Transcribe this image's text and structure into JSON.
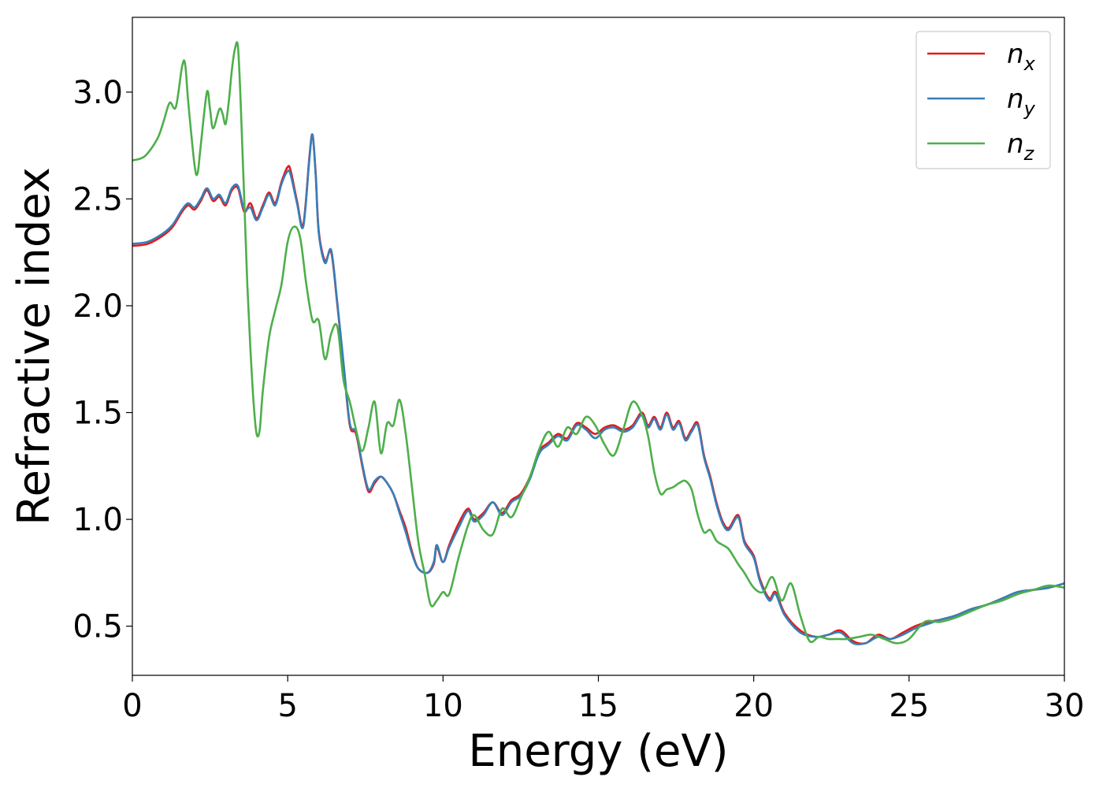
{
  "chart_data": {
    "type": "line",
    "xlabel": "Energy (eV)",
    "ylabel": "Refractive index",
    "xlim": [
      0,
      30
    ],
    "ylim": [
      0.27,
      3.35
    ],
    "xticks": [
      0,
      5,
      10,
      15,
      20,
      25,
      30
    ],
    "xtick_labels": [
      "0",
      "5",
      "10",
      "15",
      "20",
      "25",
      "30"
    ],
    "yticks": [
      0.5,
      1.0,
      1.5,
      2.0,
      2.5,
      3.0
    ],
    "ytick_labels": [
      "0.5",
      "1.0",
      "1.5",
      "2.0",
      "2.5",
      "3.0"
    ],
    "grid": false,
    "legend_position": "top-right",
    "series": [
      {
        "name": "n",
        "subscript": "x",
        "color": "#e41a1c",
        "x": [
          0,
          0.5,
          1.0,
          1.3,
          1.6,
          1.8,
          2.0,
          2.2,
          2.4,
          2.6,
          2.8,
          3.0,
          3.2,
          3.4,
          3.6,
          3.8,
          4.0,
          4.2,
          4.4,
          4.6,
          4.8,
          5.0,
          5.1,
          5.3,
          5.5,
          5.7,
          5.8,
          5.9,
          6.0,
          6.2,
          6.4,
          6.6,
          6.8,
          7.0,
          7.2,
          7.4,
          7.6,
          7.8,
          8.0,
          8.2,
          8.4,
          8.6,
          8.8,
          9.0,
          9.2,
          9.5,
          9.7,
          9.8,
          10.0,
          10.2,
          10.5,
          10.8,
          11.0,
          11.3,
          11.6,
          11.9,
          12.2,
          12.5,
          12.8,
          13.1,
          13.4,
          13.7,
          14.0,
          14.3,
          14.6,
          14.9,
          15.2,
          15.5,
          15.8,
          16.1,
          16.4,
          16.6,
          16.8,
          17.0,
          17.2,
          17.4,
          17.6,
          17.8,
          18.0,
          18.2,
          18.4,
          18.6,
          18.8,
          19.0,
          19.2,
          19.5,
          19.7,
          20.0,
          20.2,
          20.5,
          20.7,
          21.0,
          21.5,
          22.0,
          22.4,
          22.8,
          23.2,
          23.6,
          24.0,
          24.4,
          24.8,
          25.2,
          25.6,
          26.0,
          26.5,
          27.0,
          27.5,
          28.0,
          28.5,
          29.0,
          29.5,
          30.0
        ],
        "values": [
          2.28,
          2.29,
          2.33,
          2.37,
          2.44,
          2.47,
          2.45,
          2.49,
          2.54,
          2.49,
          2.51,
          2.47,
          2.54,
          2.55,
          2.44,
          2.48,
          2.41,
          2.47,
          2.53,
          2.48,
          2.58,
          2.65,
          2.63,
          2.49,
          2.38,
          2.7,
          2.8,
          2.62,
          2.35,
          2.21,
          2.25,
          2.0,
          1.72,
          1.44,
          1.4,
          1.25,
          1.13,
          1.17,
          1.2,
          1.17,
          1.12,
          1.04,
          0.96,
          0.85,
          0.77,
          0.75,
          0.79,
          0.87,
          0.8,
          0.88,
          0.98,
          1.05,
          1.0,
          1.03,
          1.08,
          1.03,
          1.09,
          1.12,
          1.2,
          1.32,
          1.36,
          1.4,
          1.38,
          1.45,
          1.43,
          1.4,
          1.43,
          1.44,
          1.42,
          1.44,
          1.5,
          1.44,
          1.48,
          1.43,
          1.5,
          1.43,
          1.46,
          1.38,
          1.42,
          1.45,
          1.3,
          1.2,
          1.08,
          0.99,
          0.96,
          1.02,
          0.9,
          0.83,
          0.72,
          0.63,
          0.66,
          0.56,
          0.48,
          0.45,
          0.46,
          0.48,
          0.43,
          0.42,
          0.46,
          0.44,
          0.47,
          0.5,
          0.52,
          0.53,
          0.55,
          0.58,
          0.6,
          0.63,
          0.66,
          0.67,
          0.68,
          0.7
        ]
      },
      {
        "name": "n",
        "subscript": "y",
        "color": "#377eb8",
        "x": [
          0,
          0.5,
          1.0,
          1.3,
          1.6,
          1.8,
          2.0,
          2.2,
          2.4,
          2.6,
          2.8,
          3.0,
          3.2,
          3.4,
          3.6,
          3.8,
          4.0,
          4.2,
          4.4,
          4.6,
          4.8,
          5.0,
          5.1,
          5.3,
          5.5,
          5.7,
          5.8,
          5.9,
          6.0,
          6.2,
          6.4,
          6.6,
          6.8,
          7.0,
          7.2,
          7.4,
          7.6,
          7.8,
          8.0,
          8.2,
          8.4,
          8.6,
          8.8,
          9.0,
          9.2,
          9.5,
          9.7,
          9.8,
          10.0,
          10.2,
          10.5,
          10.8,
          11.0,
          11.3,
          11.6,
          11.9,
          12.2,
          12.5,
          12.8,
          13.1,
          13.4,
          13.7,
          14.0,
          14.3,
          14.6,
          14.9,
          15.2,
          15.5,
          15.8,
          16.1,
          16.4,
          16.6,
          16.8,
          17.0,
          17.2,
          17.4,
          17.6,
          17.8,
          18.0,
          18.2,
          18.4,
          18.6,
          18.8,
          19.0,
          19.2,
          19.5,
          19.7,
          20.0,
          20.2,
          20.5,
          20.7,
          21.0,
          21.5,
          22.0,
          22.4,
          22.8,
          23.2,
          23.6,
          24.0,
          24.4,
          24.8,
          25.2,
          25.6,
          26.0,
          26.5,
          27.0,
          27.5,
          28.0,
          28.5,
          29.0,
          29.5,
          30.0
        ],
        "values": [
          2.29,
          2.3,
          2.34,
          2.38,
          2.45,
          2.48,
          2.46,
          2.5,
          2.55,
          2.5,
          2.52,
          2.48,
          2.55,
          2.56,
          2.45,
          2.46,
          2.4,
          2.46,
          2.52,
          2.47,
          2.57,
          2.63,
          2.61,
          2.48,
          2.37,
          2.69,
          2.8,
          2.61,
          2.34,
          2.2,
          2.26,
          2.01,
          1.73,
          1.45,
          1.41,
          1.26,
          1.14,
          1.18,
          1.2,
          1.17,
          1.12,
          1.03,
          0.94,
          0.84,
          0.77,
          0.75,
          0.8,
          0.88,
          0.8,
          0.87,
          0.96,
          1.04,
          0.99,
          1.02,
          1.08,
          1.02,
          1.08,
          1.11,
          1.19,
          1.31,
          1.35,
          1.39,
          1.37,
          1.44,
          1.42,
          1.38,
          1.42,
          1.43,
          1.41,
          1.43,
          1.49,
          1.43,
          1.47,
          1.42,
          1.49,
          1.42,
          1.45,
          1.37,
          1.41,
          1.44,
          1.29,
          1.19,
          1.07,
          0.98,
          0.95,
          1.01,
          0.89,
          0.82,
          0.71,
          0.62,
          0.65,
          0.55,
          0.47,
          0.45,
          0.46,
          0.47,
          0.42,
          0.42,
          0.45,
          0.44,
          0.46,
          0.49,
          0.51,
          0.53,
          0.55,
          0.58,
          0.6,
          0.63,
          0.66,
          0.67,
          0.68,
          0.7
        ]
      },
      {
        "name": "n",
        "subscript": "z",
        "color": "#4daf4a",
        "x": [
          0,
          0.4,
          0.8,
          1.0,
          1.2,
          1.4,
          1.6,
          1.7,
          1.8,
          2.0,
          2.1,
          2.2,
          2.4,
          2.5,
          2.6,
          2.8,
          2.9,
          3.0,
          3.1,
          3.2,
          3.3,
          3.4,
          3.5,
          3.6,
          3.7,
          3.8,
          3.9,
          4.0,
          4.1,
          4.2,
          4.4,
          4.6,
          4.8,
          5.0,
          5.2,
          5.4,
          5.6,
          5.8,
          6.0,
          6.2,
          6.4,
          6.6,
          6.8,
          7.0,
          7.2,
          7.4,
          7.6,
          7.8,
          8.0,
          8.2,
          8.4,
          8.6,
          8.8,
          9.0,
          9.2,
          9.4,
          9.6,
          9.8,
          10.0,
          10.2,
          10.5,
          10.8,
          11.0,
          11.3,
          11.6,
          11.9,
          12.2,
          12.5,
          12.8,
          13.1,
          13.4,
          13.7,
          14.0,
          14.3,
          14.6,
          14.9,
          15.2,
          15.5,
          15.8,
          16.1,
          16.4,
          16.6,
          16.8,
          17.0,
          17.2,
          17.4,
          17.6,
          17.8,
          18.0,
          18.2,
          18.4,
          18.6,
          18.8,
          19.0,
          19.2,
          19.5,
          19.7,
          20.0,
          20.3,
          20.6,
          20.9,
          21.2,
          21.5,
          21.8,
          22.1,
          22.4,
          22.7,
          23.0,
          23.4,
          23.8,
          24.2,
          24.6,
          25.0,
          25.5,
          26.0,
          26.5,
          27.0,
          27.5,
          28.0,
          28.5,
          29.0,
          29.5,
          30.0
        ],
        "values": [
          2.68,
          2.7,
          2.78,
          2.86,
          2.95,
          2.93,
          3.12,
          3.13,
          2.95,
          2.66,
          2.62,
          2.75,
          3.0,
          2.92,
          2.83,
          2.92,
          2.9,
          2.85,
          2.95,
          3.1,
          3.2,
          3.21,
          2.9,
          2.5,
          2.1,
          1.8,
          1.55,
          1.4,
          1.42,
          1.6,
          1.85,
          1.98,
          2.1,
          2.3,
          2.37,
          2.32,
          2.1,
          1.93,
          1.93,
          1.75,
          1.87,
          1.9,
          1.65,
          1.55,
          1.42,
          1.32,
          1.43,
          1.55,
          1.31,
          1.45,
          1.44,
          1.56,
          1.4,
          1.15,
          0.9,
          0.75,
          0.6,
          0.62,
          0.66,
          0.65,
          0.82,
          0.97,
          1.02,
          0.95,
          0.93,
          1.05,
          1.01,
          1.1,
          1.2,
          1.33,
          1.41,
          1.34,
          1.43,
          1.4,
          1.48,
          1.44,
          1.35,
          1.3,
          1.42,
          1.55,
          1.49,
          1.39,
          1.22,
          1.12,
          1.14,
          1.15,
          1.17,
          1.18,
          1.14,
          1.02,
          0.94,
          0.95,
          0.9,
          0.88,
          0.86,
          0.79,
          0.75,
          0.68,
          0.66,
          0.73,
          0.62,
          0.7,
          0.55,
          0.43,
          0.45,
          0.44,
          0.44,
          0.44,
          0.45,
          0.46,
          0.44,
          0.42,
          0.44,
          0.52,
          0.52,
          0.54,
          0.57,
          0.6,
          0.62,
          0.65,
          0.67,
          0.69,
          0.68
        ]
      }
    ]
  }
}
